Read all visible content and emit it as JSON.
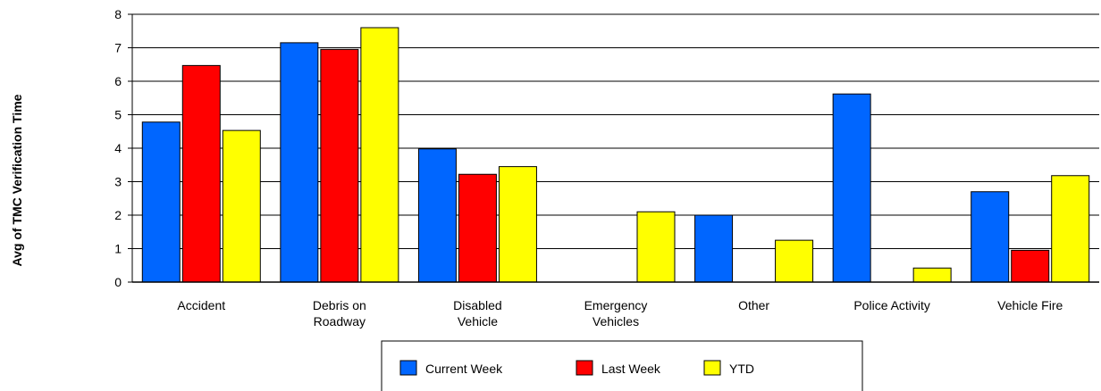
{
  "chart_data": {
    "type": "bar",
    "title": "",
    "xlabel": "",
    "ylabel": "Avg of TMC Verification Time",
    "ylim": [
      0,
      8
    ],
    "yticks": [
      0,
      1,
      2,
      3,
      4,
      5,
      6,
      7,
      8
    ],
    "grid": true,
    "legend_position": "bottom-center",
    "categories": [
      [
        "Accident"
      ],
      [
        "Debris on",
        "Roadway"
      ],
      [
        "Disabled",
        "Vehicle"
      ],
      [
        "Emergency",
        "Vehicles"
      ],
      [
        "Other"
      ],
      [
        "Police Activity"
      ],
      [
        "Vehicle Fire"
      ]
    ],
    "series": [
      {
        "name": "Current Week",
        "color": "#0066ff",
        "values": [
          4.78,
          7.15,
          3.98,
          0,
          2.0,
          5.62,
          2.7
        ]
      },
      {
        "name": "Last Week",
        "color": "#ff0000",
        "values": [
          6.47,
          6.95,
          3.22,
          0,
          0,
          0,
          0.95
        ]
      },
      {
        "name": "YTD",
        "color": "#ffff00",
        "values": [
          4.53,
          7.6,
          3.45,
          2.1,
          1.25,
          0.42,
          3.18
        ]
      }
    ]
  }
}
